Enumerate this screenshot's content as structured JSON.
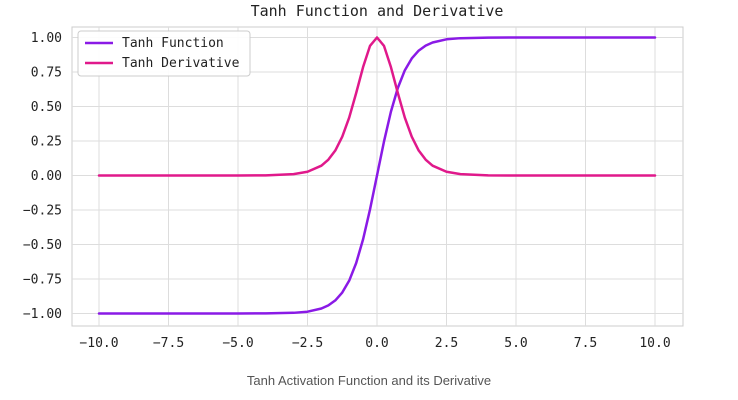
{
  "chart_data": {
    "type": "line",
    "title": "Tanh Function and Derivative",
    "xlabel": "",
    "ylabel": "",
    "xlim": [
      -10,
      10
    ],
    "ylim": [
      -1.1,
      1.1
    ],
    "grid": true,
    "legend_position": "top-left",
    "xticks": [
      -10.0,
      -7.5,
      -5.0,
      -2.5,
      0.0,
      2.5,
      5.0,
      7.5,
      10.0
    ],
    "xtick_labels": [
      "−10.0",
      "−7.5",
      "−5.0",
      "−2.5",
      "0.0",
      "2.5",
      "5.0",
      "7.5",
      "10.0"
    ],
    "yticks": [
      1.0,
      0.75,
      0.5,
      0.25,
      0.0,
      -0.25,
      -0.5,
      -0.75,
      -1.0
    ],
    "ytick_labels": [
      "1.00",
      "0.75",
      "0.50",
      "0.25",
      "0.00",
      "−0.25",
      "−0.50",
      "−0.75",
      "−1.00"
    ],
    "series": [
      {
        "name": "Tanh Function",
        "color": "#8a1ae6",
        "x": [
          -10,
          -9,
          -8,
          -7,
          -6,
          -5,
          -4,
          -3,
          -2.5,
          -2,
          -1.75,
          -1.5,
          -1.25,
          -1,
          -0.75,
          -0.5,
          -0.25,
          0,
          0.25,
          0.5,
          0.75,
          1,
          1.25,
          1.5,
          1.75,
          2,
          2.5,
          3,
          4,
          5,
          6,
          7,
          8,
          9,
          10
        ],
        "y": [
          -1.0,
          -1.0,
          -1.0,
          -1.0,
          -1.0,
          -1.0,
          -0.999,
          -0.995,
          -0.987,
          -0.964,
          -0.941,
          -0.905,
          -0.848,
          -0.762,
          -0.635,
          -0.462,
          -0.245,
          0.0,
          0.245,
          0.462,
          0.635,
          0.762,
          0.848,
          0.905,
          0.941,
          0.964,
          0.987,
          0.995,
          0.999,
          1.0,
          1.0,
          1.0,
          1.0,
          1.0,
          1.0
        ]
      },
      {
        "name": "Tanh Derivative",
        "color": "#e0198b",
        "x": [
          -10,
          -9,
          -8,
          -7,
          -6,
          -5,
          -4,
          -3,
          -2.5,
          -2,
          -1.75,
          -1.5,
          -1.25,
          -1,
          -0.75,
          -0.5,
          -0.25,
          0,
          0.25,
          0.5,
          0.75,
          1,
          1.25,
          1.5,
          1.75,
          2,
          2.5,
          3,
          4,
          5,
          6,
          7,
          8,
          9,
          10
        ],
        "y": [
          0.0,
          0.0,
          0.0,
          0.0,
          0.0,
          0.0,
          0.001,
          0.01,
          0.027,
          0.071,
          0.115,
          0.181,
          0.281,
          0.42,
          0.597,
          0.786,
          0.94,
          1.0,
          0.94,
          0.786,
          0.597,
          0.42,
          0.281,
          0.181,
          0.115,
          0.071,
          0.027,
          0.01,
          0.001,
          0.0,
          0.0,
          0.0,
          0.0,
          0.0,
          0.0
        ]
      }
    ]
  },
  "caption": "Tanh Activation Function and its Derivative"
}
